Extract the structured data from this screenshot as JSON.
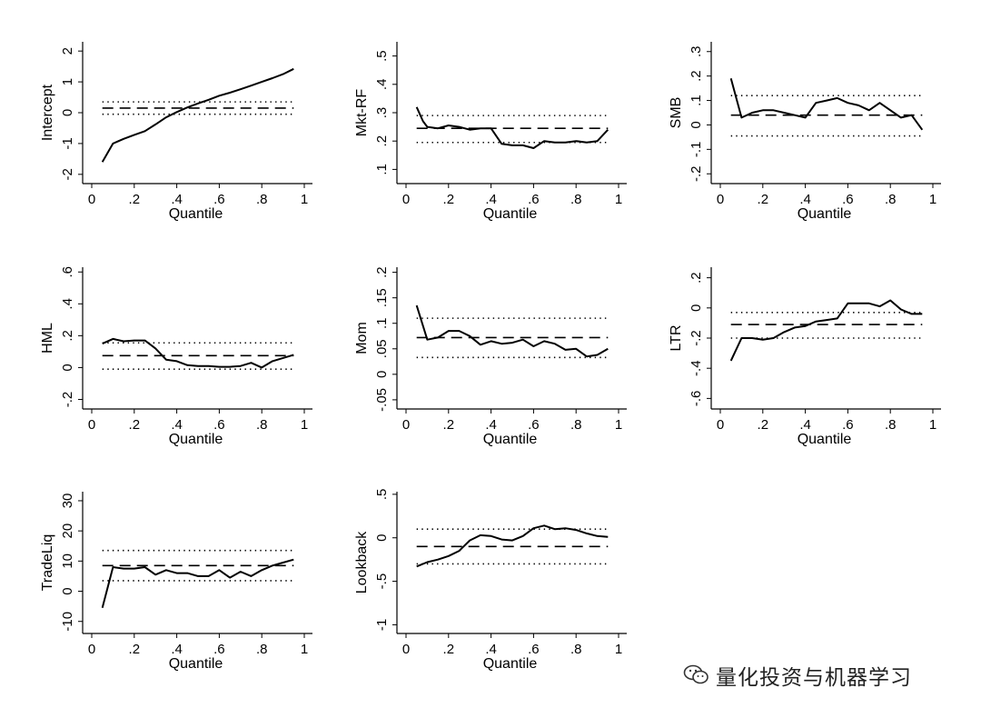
{
  "figure": {
    "watermark": "量化投资与机器学习",
    "watermark_icon": "wechat-icon"
  },
  "chart_data": [
    {
      "type": "line",
      "ylabel": "Intercept",
      "xlabel": "Quantile",
      "xlim": [
        0,
        1
      ],
      "ylim": [
        -2.3,
        2.3
      ],
      "xticks": [
        {
          "v": 0,
          "l": "0"
        },
        {
          "v": 0.2,
          "l": ".2"
        },
        {
          "v": 0.4,
          "l": ".4"
        },
        {
          "v": 0.6,
          "l": ".6"
        },
        {
          "v": 0.8,
          "l": ".8"
        },
        {
          "v": 1,
          "l": "1"
        }
      ],
      "yticks": [
        {
          "v": -2,
          "l": "-2"
        },
        {
          "v": -1,
          "l": "-1"
        },
        {
          "v": 0,
          "l": "0"
        },
        {
          "v": 1,
          "l": "1"
        },
        {
          "v": 2,
          "l": "2"
        }
      ],
      "ols": 0.15,
      "ci_upper": 0.35,
      "ci_lower": -0.05,
      "series": [
        {
          "x": [
            0.05,
            0.1,
            0.15,
            0.2,
            0.25,
            0.3,
            0.35,
            0.4,
            0.45,
            0.5,
            0.55,
            0.6,
            0.65,
            0.7,
            0.75,
            0.8,
            0.85,
            0.9,
            0.95
          ],
          "y": [
            -1.6,
            -1.0,
            -0.85,
            -0.72,
            -0.6,
            -0.38,
            -0.15,
            0.02,
            0.17,
            0.3,
            0.42,
            0.55,
            0.65,
            0.76,
            0.88,
            1.0,
            1.12,
            1.25,
            1.42
          ]
        }
      ]
    },
    {
      "type": "line",
      "ylabel": "Mkt-RF",
      "xlabel": "Quantile",
      "xlim": [
        0,
        1
      ],
      "ylim": [
        0.05,
        0.55
      ],
      "xticks": [
        {
          "v": 0,
          "l": "0"
        },
        {
          "v": 0.2,
          "l": ".2"
        },
        {
          "v": 0.4,
          "l": ".4"
        },
        {
          "v": 0.6,
          "l": ".6"
        },
        {
          "v": 0.8,
          "l": ".8"
        },
        {
          "v": 1,
          "l": "1"
        }
      ],
      "yticks": [
        {
          "v": 0.1,
          "l": ".1"
        },
        {
          "v": 0.2,
          "l": ".2"
        },
        {
          "v": 0.3,
          "l": ".3"
        },
        {
          "v": 0.4,
          "l": ".4"
        },
        {
          "v": 0.5,
          "l": ".5"
        }
      ],
      "ols": 0.245,
      "ci_upper": 0.29,
      "ci_lower": 0.195,
      "series": [
        {
          "x": [
            0.05,
            0.08,
            0.1,
            0.15,
            0.2,
            0.25,
            0.3,
            0.35,
            0.4,
            0.45,
            0.5,
            0.55,
            0.6,
            0.65,
            0.7,
            0.75,
            0.8,
            0.85,
            0.9,
            0.95
          ],
          "y": [
            0.32,
            0.27,
            0.25,
            0.245,
            0.255,
            0.25,
            0.24,
            0.245,
            0.245,
            0.19,
            0.185,
            0.185,
            0.175,
            0.2,
            0.195,
            0.195,
            0.2,
            0.195,
            0.2,
            0.24
          ]
        }
      ]
    },
    {
      "type": "line",
      "ylabel": "SMB",
      "xlabel": "Quantile",
      "xlim": [
        0,
        1
      ],
      "ylim": [
        -0.24,
        0.34
      ],
      "xticks": [
        {
          "v": 0,
          "l": "0"
        },
        {
          "v": 0.2,
          "l": ".2"
        },
        {
          "v": 0.4,
          "l": ".4"
        },
        {
          "v": 0.6,
          "l": ".6"
        },
        {
          "v": 0.8,
          "l": ".8"
        },
        {
          "v": 1,
          "l": "1"
        }
      ],
      "yticks": [
        {
          "v": -0.2,
          "l": "-.2"
        },
        {
          "v": -0.1,
          "l": "-.1"
        },
        {
          "v": 0,
          "l": "0"
        },
        {
          "v": 0.1,
          "l": ".1"
        },
        {
          "v": 0.2,
          "l": ".2"
        },
        {
          "v": 0.3,
          "l": ".3"
        }
      ],
      "ols": 0.04,
      "ci_upper": 0.12,
      "ci_lower": -0.045,
      "series": [
        {
          "x": [
            0.05,
            0.1,
            0.15,
            0.2,
            0.25,
            0.3,
            0.35,
            0.4,
            0.45,
            0.5,
            0.55,
            0.6,
            0.65,
            0.7,
            0.75,
            0.8,
            0.85,
            0.9,
            0.95
          ],
          "y": [
            0.19,
            0.03,
            0.05,
            0.06,
            0.06,
            0.05,
            0.04,
            0.03,
            0.09,
            0.1,
            0.11,
            0.09,
            0.08,
            0.06,
            0.09,
            0.06,
            0.03,
            0.04,
            -0.02
          ]
        }
      ]
    },
    {
      "type": "line",
      "ylabel": "HML",
      "xlabel": "Quantile",
      "xlim": [
        0,
        1
      ],
      "ylim": [
        -0.26,
        0.63
      ],
      "xticks": [
        {
          "v": 0,
          "l": "0"
        },
        {
          "v": 0.2,
          "l": ".2"
        },
        {
          "v": 0.4,
          "l": ".4"
        },
        {
          "v": 0.6,
          "l": ".6"
        },
        {
          "v": 0.8,
          "l": ".8"
        },
        {
          "v": 1,
          "l": "1"
        }
      ],
      "yticks": [
        {
          "v": -0.2,
          "l": "-.2"
        },
        {
          "v": 0,
          "l": "0"
        },
        {
          "v": 0.2,
          "l": ".2"
        },
        {
          "v": 0.4,
          "l": ".4"
        },
        {
          "v": 0.6,
          "l": ".6"
        }
      ],
      "ols": 0.075,
      "ci_upper": 0.155,
      "ci_lower": -0.01,
      "series": [
        {
          "x": [
            0.05,
            0.1,
            0.15,
            0.2,
            0.25,
            0.3,
            0.35,
            0.4,
            0.45,
            0.5,
            0.55,
            0.6,
            0.65,
            0.7,
            0.75,
            0.8,
            0.85,
            0.9,
            0.95
          ],
          "y": [
            0.15,
            0.18,
            0.165,
            0.17,
            0.17,
            0.12,
            0.05,
            0.04,
            0.015,
            0.01,
            0.01,
            0.005,
            0.005,
            0.01,
            0.03,
            0.0,
            0.04,
            0.06,
            0.08
          ]
        }
      ]
    },
    {
      "type": "line",
      "ylabel": "Mom",
      "xlabel": "Quantile",
      "xlim": [
        0,
        1
      ],
      "ylim": [
        -0.068,
        0.21
      ],
      "xticks": [
        {
          "v": 0,
          "l": "0"
        },
        {
          "v": 0.2,
          "l": ".2"
        },
        {
          "v": 0.4,
          "l": ".4"
        },
        {
          "v": 0.6,
          "l": ".6"
        },
        {
          "v": 0.8,
          "l": ".8"
        },
        {
          "v": 1,
          "l": "1"
        }
      ],
      "yticks": [
        {
          "v": -0.05,
          "l": "-.05"
        },
        {
          "v": 0,
          "l": "0"
        },
        {
          "v": 0.05,
          "l": ".05"
        },
        {
          "v": 0.1,
          "l": ".1"
        },
        {
          "v": 0.15,
          "l": ".15"
        },
        {
          "v": 0.2,
          "l": ".2"
        }
      ],
      "ols": 0.072,
      "ci_upper": 0.11,
      "ci_lower": 0.033,
      "series": [
        {
          "x": [
            0.05,
            0.1,
            0.15,
            0.2,
            0.25,
            0.3,
            0.35,
            0.4,
            0.45,
            0.5,
            0.55,
            0.6,
            0.65,
            0.7,
            0.75,
            0.8,
            0.85,
            0.9,
            0.95
          ],
          "y": [
            0.135,
            0.068,
            0.072,
            0.085,
            0.085,
            0.075,
            0.058,
            0.065,
            0.06,
            0.062,
            0.068,
            0.055,
            0.065,
            0.06,
            0.048,
            0.05,
            0.035,
            0.038,
            0.05
          ]
        }
      ]
    },
    {
      "type": "line",
      "ylabel": "LTR",
      "xlabel": "Quantile",
      "xlim": [
        0,
        1
      ],
      "ylim": [
        -0.67,
        0.27
      ],
      "xticks": [
        {
          "v": 0,
          "l": "0"
        },
        {
          "v": 0.2,
          "l": ".2"
        },
        {
          "v": 0.4,
          "l": ".4"
        },
        {
          "v": 0.6,
          "l": ".6"
        },
        {
          "v": 0.8,
          "l": ".8"
        },
        {
          "v": 1,
          "l": "1"
        }
      ],
      "yticks": [
        {
          "v": -0.6,
          "l": "-.6"
        },
        {
          "v": -0.4,
          "l": "-.4"
        },
        {
          "v": -0.2,
          "l": "-.2"
        },
        {
          "v": 0,
          "l": "0"
        },
        {
          "v": 0.2,
          "l": ".2"
        }
      ],
      "ols": -0.11,
      "ci_upper": -0.03,
      "ci_lower": -0.2,
      "series": [
        {
          "x": [
            0.05,
            0.1,
            0.15,
            0.2,
            0.25,
            0.3,
            0.35,
            0.4,
            0.45,
            0.5,
            0.55,
            0.6,
            0.65,
            0.7,
            0.75,
            0.8,
            0.85,
            0.9,
            0.95
          ],
          "y": [
            -0.35,
            -0.2,
            -0.2,
            -0.21,
            -0.2,
            -0.16,
            -0.13,
            -0.12,
            -0.09,
            -0.08,
            -0.07,
            0.03,
            0.03,
            0.03,
            0.01,
            0.05,
            -0.01,
            -0.04,
            -0.04
          ]
        }
      ]
    },
    {
      "type": "line",
      "ylabel": "TradeLiq",
      "xlabel": "Quantile",
      "xlim": [
        0,
        1
      ],
      "ylim": [
        -14,
        33
      ],
      "xticks": [
        {
          "v": 0,
          "l": "0"
        },
        {
          "v": 0.2,
          "l": ".2"
        },
        {
          "v": 0.4,
          "l": ".4"
        },
        {
          "v": 0.6,
          "l": ".6"
        },
        {
          "v": 0.8,
          "l": ".8"
        },
        {
          "v": 1,
          "l": "1"
        }
      ],
      "yticks": [
        {
          "v": -10,
          "l": "-10"
        },
        {
          "v": 0,
          "l": "0"
        },
        {
          "v": 10,
          "l": "10"
        },
        {
          "v": 20,
          "l": "20"
        },
        {
          "v": 30,
          "l": "30"
        }
      ],
      "ols": 8.5,
      "ci_upper": 13.5,
      "ci_lower": 3.5,
      "series": [
        {
          "x": [
            0.05,
            0.1,
            0.15,
            0.2,
            0.25,
            0.3,
            0.35,
            0.4,
            0.45,
            0.5,
            0.55,
            0.6,
            0.65,
            0.7,
            0.75,
            0.8,
            0.85,
            0.9,
            0.95
          ],
          "y": [
            -5.5,
            8,
            7.5,
            7.5,
            8,
            5.5,
            7,
            6,
            6,
            5,
            5,
            7,
            4.5,
            6.5,
            5,
            7,
            8.5,
            9.5,
            10.5
          ]
        }
      ]
    },
    {
      "type": "line",
      "ylabel": "Lookback",
      "xlabel": "Quantile",
      "xlim": [
        0,
        1
      ],
      "ylim": [
        -1.1,
        0.53
      ],
      "xticks": [
        {
          "v": 0,
          "l": "0"
        },
        {
          "v": 0.2,
          "l": ".2"
        },
        {
          "v": 0.4,
          "l": ".4"
        },
        {
          "v": 0.6,
          "l": ".6"
        },
        {
          "v": 0.8,
          "l": ".8"
        },
        {
          "v": 1,
          "l": "1"
        }
      ],
      "yticks": [
        {
          "v": -1,
          "l": "-1"
        },
        {
          "v": -0.5,
          "l": "-.5"
        },
        {
          "v": 0,
          "l": "0"
        },
        {
          "v": 0.5,
          "l": ".5"
        }
      ],
      "ols": -0.1,
      "ci_upper": 0.1,
      "ci_lower": -0.3,
      "series": [
        {
          "x": [
            0.05,
            0.1,
            0.15,
            0.2,
            0.25,
            0.3,
            0.35,
            0.4,
            0.45,
            0.5,
            0.55,
            0.6,
            0.65,
            0.7,
            0.75,
            0.8,
            0.85,
            0.9,
            0.95
          ],
          "y": [
            -0.33,
            -0.28,
            -0.25,
            -0.21,
            -0.15,
            -0.03,
            0.03,
            0.02,
            -0.02,
            -0.03,
            0.02,
            0.11,
            0.14,
            0.1,
            0.11,
            0.09,
            0.05,
            0.02,
            0.01
          ]
        }
      ]
    }
  ]
}
